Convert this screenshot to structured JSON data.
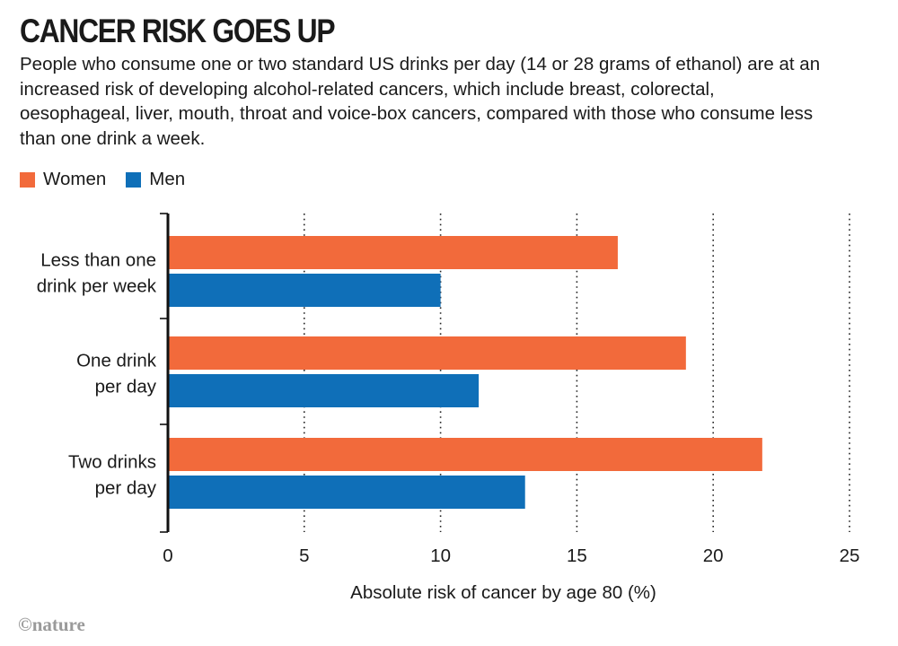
{
  "title": "CANCER RISK GOES UP",
  "subtitle": "People who consume one or two standard US drinks per day (14 or 28 grams of ethanol) are at an increased risk of developing alcohol-related cancers, which include breast, colorectal, oesophageal, liver, mouth, throat and voice-box cancers, compared with those who consume less than one drink a week.",
  "legend": [
    {
      "label": "Women",
      "color": "#f26a3b"
    },
    {
      "label": "Men",
      "color": "#0f6fb8"
    }
  ],
  "credit": "©nature",
  "chart_data": {
    "type": "bar",
    "orientation": "horizontal",
    "categories": [
      [
        "Less than one",
        "drink per week"
      ],
      [
        "One drink",
        "per day"
      ],
      [
        "Two drinks",
        "per day"
      ]
    ],
    "series": [
      {
        "name": "Women",
        "color": "#f26a3b",
        "values": [
          16.5,
          19.0,
          21.8
        ]
      },
      {
        "name": "Men",
        "color": "#0f6fb8",
        "values": [
          10.0,
          11.4,
          13.1
        ]
      }
    ],
    "xlim": [
      0,
      25
    ],
    "xticks": [
      "0",
      "5",
      "10",
      "15",
      "20",
      "25"
    ],
    "xlabel": "Absolute risk of cancer by age 80 (%)",
    "grid": "vertical-dotted"
  }
}
